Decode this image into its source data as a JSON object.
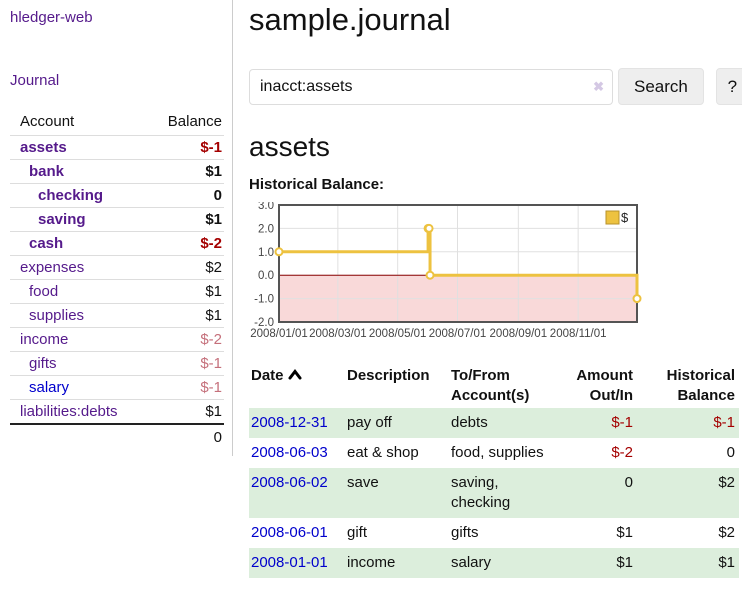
{
  "app": {
    "brand": "hledger-web"
  },
  "nav": {
    "journal_label": "Journal"
  },
  "sidebar": {
    "columns": {
      "account": "Account",
      "balance": "Balance"
    },
    "accounts": [
      {
        "name": "assets",
        "balance": "$-1",
        "depth": 1,
        "bold": true,
        "neg": "strong"
      },
      {
        "name": "bank",
        "balance": "$1",
        "depth": 2,
        "bold": true
      },
      {
        "name": "checking",
        "balance": "0",
        "depth": 3,
        "bold": true
      },
      {
        "name": "saving",
        "balance": "$1",
        "depth": 3,
        "bold": true
      },
      {
        "name": "cash",
        "balance": "$-2",
        "depth": 2,
        "bold": true,
        "neg": "strong"
      },
      {
        "name": "expenses",
        "balance": "$2",
        "depth": 1
      },
      {
        "name": "food",
        "balance": "$1",
        "depth": 2
      },
      {
        "name": "supplies",
        "balance": "$1",
        "depth": 2
      },
      {
        "name": "income",
        "balance": "$-2",
        "depth": 1,
        "neg": "soft"
      },
      {
        "name": "gifts",
        "balance": "$-1",
        "depth": 2,
        "neg": "soft"
      },
      {
        "name": "salary",
        "balance": "$-1",
        "depth": 2,
        "neg": "soft",
        "link": "unvisited"
      },
      {
        "name": "liabilities:debts",
        "balance": "$1",
        "depth": 1
      }
    ],
    "total": "0"
  },
  "header": {
    "title": "sample.journal"
  },
  "search": {
    "value": "inacct:assets",
    "clear_icon": "✖",
    "button_label": "Search",
    "help_label": "?"
  },
  "main": {
    "account_heading": "assets",
    "chart_label": "Historical Balance:"
  },
  "chart_data": {
    "type": "line",
    "step": true,
    "title": "Historical Balance",
    "x_range": [
      "2008-01-01",
      "2008-12-31"
    ],
    "ylim": [
      -2,
      3
    ],
    "x_ticks": [
      "2008/01/01",
      "2008/03/01",
      "2008/05/01",
      "2008/07/01",
      "2008/09/01",
      "2008/11/01"
    ],
    "y_ticks": [
      "3.0",
      "2.0",
      "1.0",
      "0.0",
      "-1.0",
      "-2.0"
    ],
    "grid": true,
    "legend": {
      "label": "$",
      "position": "top-right"
    },
    "series": [
      {
        "name": "$",
        "color": "#edc240",
        "points": [
          {
            "date": "2008-01-01",
            "value": 1
          },
          {
            "date": "2008-06-01",
            "value": 2
          },
          {
            "date": "2008-06-02",
            "value": 2
          },
          {
            "date": "2008-06-03",
            "value": 0
          },
          {
            "date": "2008-12-31",
            "value": -1
          }
        ]
      }
    ],
    "colors": {
      "negative_region_fill": "#f9d9d9",
      "zero_line": "#8b0000",
      "grid_line": "#e0e0e0",
      "plot_border": "#545454",
      "tick_label": "#444444",
      "marker_fill": "#ffffff"
    }
  },
  "register": {
    "headers": {
      "date": "Date",
      "description": "Description",
      "accounts": "To/From Account(s)",
      "amount": "Amount Out/In",
      "balance": "Historical Balance"
    },
    "rows": [
      {
        "date": "2008-12-31",
        "description": "pay off",
        "accounts": "debts",
        "amount": "$-1",
        "balance": "$-1"
      },
      {
        "date": "2008-06-03",
        "description": "eat & shop",
        "accounts": "food, supplies",
        "amount": "$-2",
        "balance": "0"
      },
      {
        "date": "2008-06-02",
        "description": "save",
        "accounts": "saving, checking",
        "amount": "0",
        "balance": "$2"
      },
      {
        "date": "2008-06-01",
        "description": "gift",
        "accounts": "gifts",
        "amount": "$1",
        "balance": "$2"
      },
      {
        "date": "2008-01-01",
        "description": "income",
        "accounts": "salary",
        "amount": "$1",
        "balance": "$1"
      }
    ]
  }
}
